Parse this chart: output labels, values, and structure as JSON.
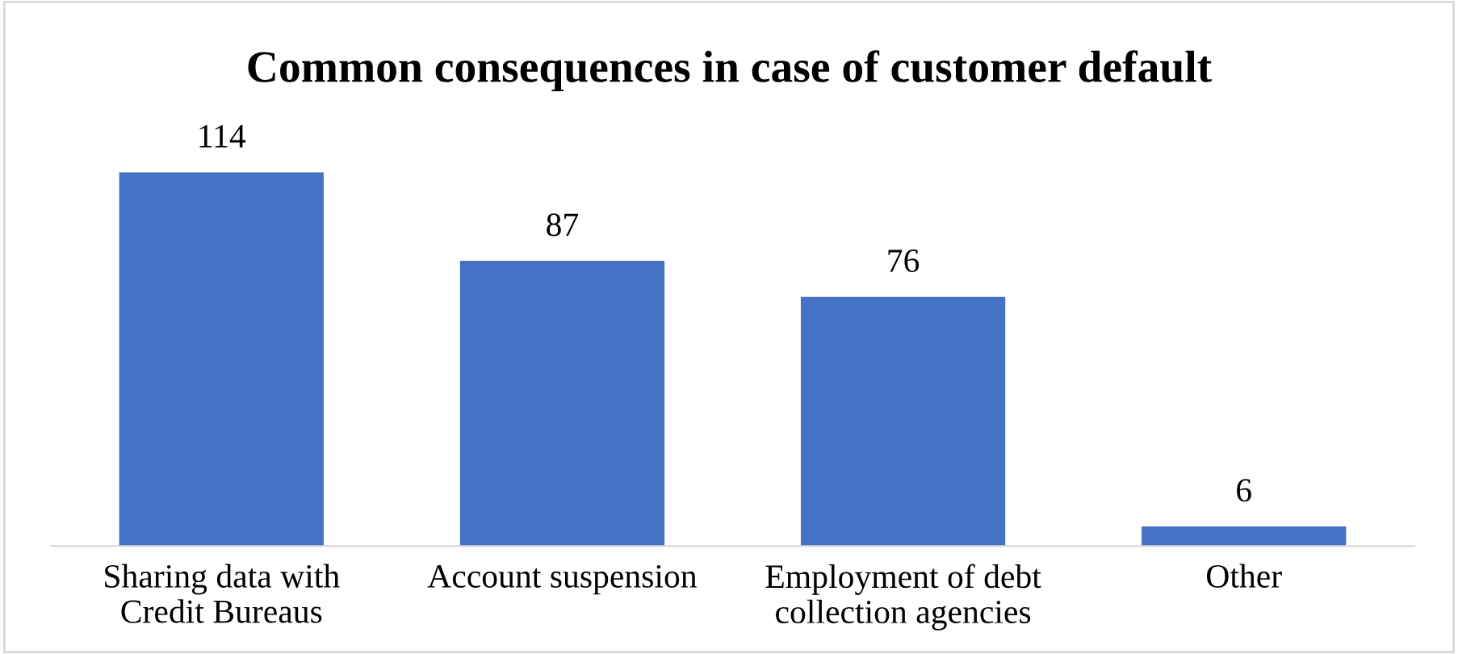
{
  "chart_data": {
    "type": "bar",
    "title": "Common consequences in case of customer default",
    "categories": [
      "Sharing data with\nCredit Bureaus",
      "Account suspension",
      "Employment of debt\ncollection agencies",
      "Other"
    ],
    "values": [
      114,
      87,
      76,
      6
    ],
    "color": "#4472c4",
    "data_labels": true,
    "grid": false,
    "legend": false
  }
}
